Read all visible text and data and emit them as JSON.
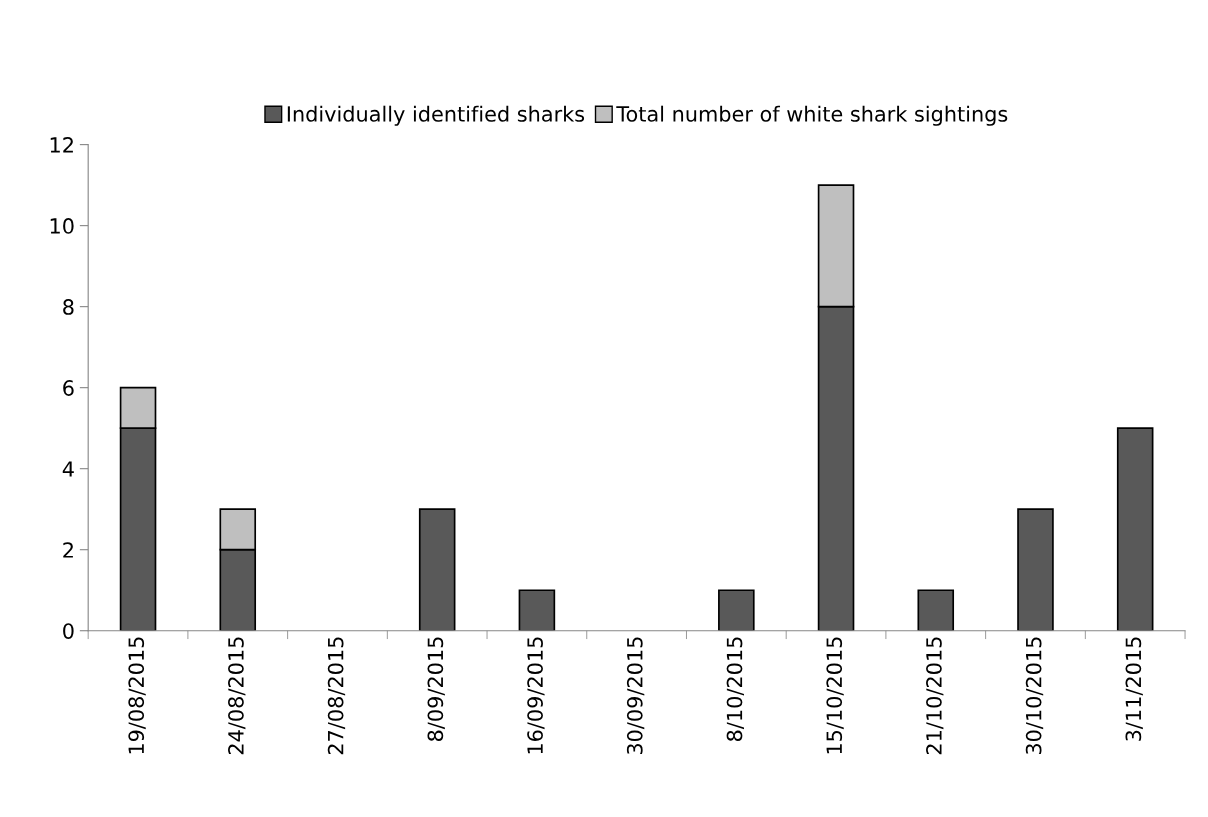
{
  "chart_data": {
    "type": "bar",
    "stacked": true,
    "categories": [
      "19/08/2015",
      "24/08/2015",
      "27/08/2015",
      "8/09/2015",
      "16/09/2015",
      "30/09/2015",
      "8/10/2015",
      "15/10/2015",
      "21/10/2015",
      "30/10/2015",
      "3/11/2015"
    ],
    "series": [
      {
        "name": "Individually identified sharks",
        "color": "#595959",
        "values": [
          5,
          2,
          0,
          3,
          1,
          0,
          1,
          8,
          1,
          3,
          5
        ]
      },
      {
        "name": "Total number of white shark sightings",
        "color": "#bfbfbf",
        "values": [
          1,
          1,
          0,
          0,
          0,
          0,
          0,
          3,
          0,
          0,
          0
        ]
      }
    ],
    "ylim": [
      0,
      12
    ],
    "yticks": [
      0,
      2,
      4,
      6,
      8,
      10,
      12
    ],
    "grid": false,
    "legend": "top"
  }
}
